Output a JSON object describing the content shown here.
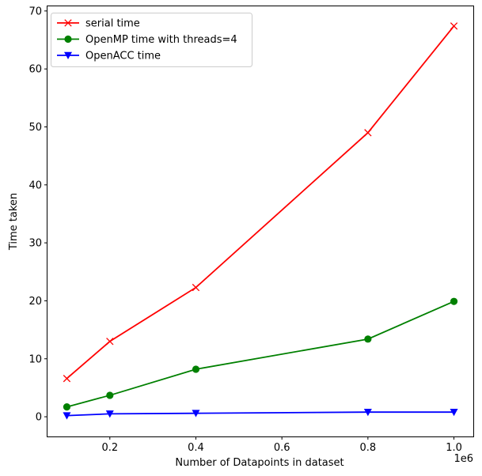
{
  "chart_data": {
    "type": "line",
    "title": "",
    "xlabel": "Number of Datapoints in dataset",
    "ylabel": "Time taken",
    "x_offset_label": "1e6",
    "x": [
      0.1,
      0.2,
      0.4,
      0.8,
      1.0
    ],
    "xlim": [
      0.055,
      1.045
    ],
    "ylim": [
      -3.4,
      70.8
    ],
    "x_ticks": [
      0.2,
      0.4,
      0.6,
      0.8,
      1.0
    ],
    "x_tick_labels": [
      "0.2",
      "0.4",
      "0.6",
      "0.8",
      "1.0"
    ],
    "y_ticks": [
      0,
      10,
      20,
      30,
      40,
      50,
      60,
      70
    ],
    "y_tick_labels": [
      "0",
      "10",
      "20",
      "30",
      "40",
      "50",
      "60",
      "70"
    ],
    "grid": false,
    "legend_position": "top-left",
    "series": [
      {
        "name": "serial time",
        "color": "#ff0000",
        "marker": "x",
        "values": [
          6.6,
          13.0,
          22.3,
          49.0,
          67.4
        ]
      },
      {
        "name": "OpenMP time with threads=4",
        "color": "#008000",
        "marker": "circle",
        "values": [
          1.7,
          3.7,
          8.2,
          13.4,
          19.9
        ]
      },
      {
        "name": "OpenACC time",
        "color": "#0000ff",
        "marker": "triangle-down",
        "values": [
          0.2,
          0.5,
          0.6,
          0.8,
          0.8
        ]
      }
    ]
  }
}
